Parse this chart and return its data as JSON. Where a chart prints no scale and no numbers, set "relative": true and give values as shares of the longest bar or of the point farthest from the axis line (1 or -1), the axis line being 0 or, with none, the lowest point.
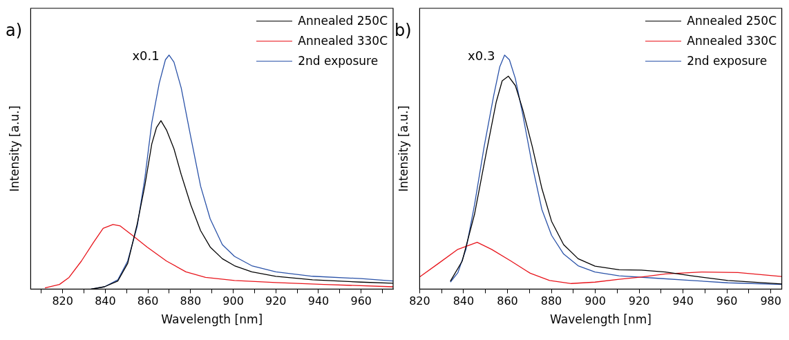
{
  "chart_data": [
    {
      "type": "line",
      "relative": true,
      "xlabel": "Wavelength [nm]",
      "ylabel": "Intensity [a.u.]",
      "xlim": [
        805,
        975
      ],
      "xticks": [
        {
          "value": 810,
          "label": null
        },
        820,
        {
          "value": 830,
          "label": null
        },
        840,
        {
          "value": 850,
          "label": null
        },
        860,
        {
          "value": 870,
          "label": null
        },
        880,
        {
          "value": 890,
          "label": null
        },
        900,
        {
          "value": 910,
          "label": null
        },
        920,
        {
          "value": 930,
          "label": null
        },
        940,
        {
          "value": 950,
          "label": null
        },
        960,
        {
          "value": 970,
          "label": null
        }
      ],
      "legend": "top right",
      "annotations": [
        "a)",
        "x0.1"
      ],
      "series": [
        {
          "name": "Annealed 250C",
          "color": "#000000",
          "x": [
            833.3,
            839.6,
            845.9,
            850.5,
            855,
            858.5,
            861.8,
            864,
            866.1,
            868.7,
            872.2,
            875.6,
            880.1,
            884.7,
            889.2,
            894.9,
            900.6,
            908.7,
            920,
            937.2,
            960,
            975
          ],
          "values": [
            0,
            0.01,
            0.035,
            0.11,
            0.28,
            0.44,
            0.62,
            0.69,
            0.72,
            0.68,
            0.6,
            0.49,
            0.36,
            0.25,
            0.18,
            0.13,
            0.1,
            0.074,
            0.055,
            0.04,
            0.03,
            0.025
          ]
        },
        {
          "name": "Annealed 330C",
          "color": "#e8141b",
          "x": [
            811.7,
            818.5,
            823,
            828.8,
            834.5,
            839,
            843.6,
            847,
            852.7,
            859.6,
            868.7,
            877.8,
            887,
            900.6,
            920,
            942.6,
            975
          ],
          "values": [
            0.005,
            0.02,
            0.05,
            0.12,
            0.2,
            0.26,
            0.276,
            0.27,
            0.23,
            0.18,
            0.12,
            0.074,
            0.05,
            0.037,
            0.028,
            0.02,
            0.01
          ]
        },
        {
          "name": "2nd exposure",
          "color": "#2a52a8",
          "x": [
            833.3,
            839.6,
            845.9,
            850.5,
            855,
            858.5,
            861.8,
            865.3,
            868.2,
            869.9,
            872.2,
            875.6,
            880.1,
            884.7,
            889.2,
            894.9,
            900.6,
            908.7,
            920,
            937.2,
            960,
            975
          ],
          "values": [
            0,
            0.01,
            0.04,
            0.12,
            0.27,
            0.47,
            0.71,
            0.88,
            0.98,
            1,
            0.97,
            0.86,
            0.65,
            0.44,
            0.3,
            0.19,
            0.14,
            0.1,
            0.074,
            0.055,
            0.045,
            0.035
          ]
        }
      ]
    },
    {
      "type": "line",
      "relative": true,
      "xlabel": "Wavelength [nm]",
      "ylabel": "Intensity [a.u.]",
      "xlim": [
        820,
        985
      ],
      "xticks": [
        820,
        {
          "value": 830,
          "label": null
        },
        840,
        {
          "value": 850,
          "label": null
        },
        860,
        {
          "value": 870,
          "label": null
        },
        880,
        {
          "value": 890,
          "label": null
        },
        900,
        {
          "value": 910,
          "label": null
        },
        920,
        {
          "value": 930,
          "label": null
        },
        940,
        {
          "value": 950,
          "label": null
        },
        960,
        {
          "value": 970,
          "label": null
        },
        980
      ],
      "legend": "top right",
      "annotations": [
        "b)",
        "x0.3"
      ],
      "series": [
        {
          "name": "Annealed 250C",
          "color": "#000000",
          "x": [
            834,
            839.4,
            845,
            850.5,
            854.9,
            857.6,
            860.4,
            863.6,
            866.9,
            871.3,
            875.7,
            880.1,
            885.6,
            892.2,
            899.9,
            910.9,
            921,
            932,
            943.9,
            960.4,
            985
          ],
          "values": [
            0.034,
            0.12,
            0.32,
            0.59,
            0.8,
            0.89,
            0.91,
            0.87,
            0.77,
            0.61,
            0.43,
            0.29,
            0.19,
            0.13,
            0.098,
            0.083,
            0.081,
            0.073,
            0.057,
            0.037,
            0.022
          ]
        },
        {
          "name": "Annealed 330C",
          "color": "#e8141b",
          "x": [
            820,
            828.6,
            837.4,
            846.2,
            852.8,
            861.6,
            870.4,
            879.2,
            889.1,
            899.9,
            910.9,
            921,
            932,
            948.5,
            965,
            985
          ],
          "values": [
            0.052,
            0.11,
            0.17,
            0.2,
            0.17,
            0.12,
            0.068,
            0.037,
            0.024,
            0.03,
            0.042,
            0.052,
            0.065,
            0.073,
            0.071,
            0.054
          ]
        },
        {
          "name": "2nd exposure",
          "color": "#2a52a8",
          "x": [
            834,
            837.4,
            841.1,
            845,
            849.4,
            853.8,
            856.5,
            858.7,
            860.9,
            863.6,
            866.9,
            871.3,
            875.7,
            880.1,
            885.6,
            892.2,
            899.9,
            910.9,
            927.4,
            943.9,
            960.4,
            985
          ],
          "values": [
            0.03,
            0.07,
            0.17,
            0.36,
            0.61,
            0.83,
            0.95,
            1,
            0.98,
            0.9,
            0.75,
            0.53,
            0.34,
            0.23,
            0.15,
            0.1,
            0.073,
            0.057,
            0.047,
            0.037,
            0.027,
            0.02
          ]
        }
      ]
    }
  ]
}
